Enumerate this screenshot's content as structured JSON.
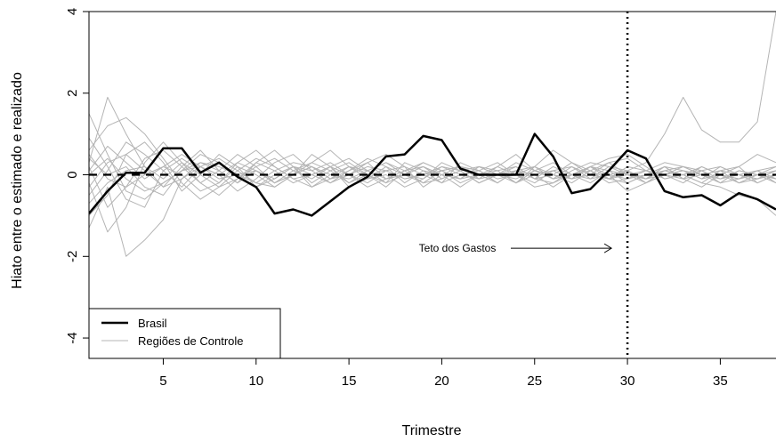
{
  "chart_data": {
    "type": "line",
    "title": "",
    "xlabel": "Trimestre",
    "ylabel": "Hiato entre o estimado e realizado",
    "xlim": [
      1,
      38
    ],
    "ylim": [
      -4.5,
      4
    ],
    "xticks": [
      5,
      10,
      15,
      20,
      25,
      30,
      35
    ],
    "yticks": [
      -4,
      -2,
      0,
      2,
      4
    ],
    "x": [
      1,
      2,
      3,
      4,
      5,
      6,
      7,
      8,
      9,
      10,
      11,
      12,
      13,
      14,
      15,
      16,
      17,
      18,
      19,
      20,
      21,
      22,
      23,
      24,
      25,
      26,
      27,
      28,
      29,
      30,
      31,
      32,
      33,
      34,
      35,
      36,
      37,
      38
    ],
    "reference_line": {
      "y": 0,
      "style": "dashed"
    },
    "intervention": {
      "x": 30,
      "style": "dotted",
      "annotation": "Teto dos Gastos"
    },
    "legend": {
      "position": "bottom-left",
      "entries": [
        {
          "label": "Brasil",
          "color": "#000000",
          "width": 2.5
        },
        {
          "label": "Regiões de Controle",
          "color": "#b4b4b4",
          "width": 1
        }
      ]
    },
    "series": [
      {
        "name": "Brasil",
        "color": "#000000",
        "values": [
          -0.95,
          -0.4,
          0.05,
          0.05,
          0.65,
          0.65,
          0.05,
          0.3,
          -0.05,
          -0.3,
          -0.95,
          -0.85,
          -1.0,
          -0.65,
          -0.3,
          -0.05,
          0.45,
          0.5,
          0.95,
          0.85,
          0.15,
          0.0,
          0.0,
          0.0,
          1.0,
          0.45,
          -0.45,
          -0.35,
          0.1,
          0.6,
          0.4,
          -0.4,
          -0.55,
          -0.5,
          -0.75,
          -0.45,
          -0.6,
          -0.85
        ]
      },
      {
        "color": "#b4b4b4",
        "values": [
          1.5,
          0.5,
          -0.4,
          -0.6,
          -0.2,
          0.1,
          0.3,
          0.2,
          0.0,
          -0.2,
          0.1,
          0.3,
          0.2,
          -0.1,
          0.0,
          0.2,
          0.1,
          -0.1,
          0.0,
          0.2,
          0.1,
          -0.2,
          0.0,
          0.3,
          0.1,
          -0.1,
          0.2,
          0.0,
          -0.1,
          0.2,
          0.1,
          0.3,
          0.2,
          0.0,
          0.1,
          0.2,
          0.5,
          0.3
        ]
      },
      {
        "color": "#b4b4b4",
        "values": [
          0.3,
          1.9,
          1.0,
          0.2,
          -0.3,
          0.2,
          0.6,
          0.1,
          -0.2,
          0.3,
          0.1,
          -0.2,
          0.0,
          0.2,
          0.4,
          0.1,
          -0.2,
          0.0,
          0.3,
          0.1,
          -0.1,
          0.2,
          0.0,
          -0.2,
          0.1,
          0.3,
          0.0,
          -0.1,
          0.2,
          0.1,
          -0.2,
          0.1,
          0.0,
          -0.2,
          0.1,
          0.0,
          -0.1,
          0.1
        ]
      },
      {
        "color": "#b4b4b4",
        "values": [
          -1.3,
          -0.3,
          -2.0,
          -1.6,
          -1.1,
          -0.1,
          0.3,
          0.1,
          -0.2,
          0.1,
          -0.1,
          0.2,
          0.0,
          -0.2,
          0.1,
          0.3,
          -0.1,
          0.0,
          0.2,
          -0.1,
          0.1,
          -0.2,
          0.0,
          0.1,
          0.2,
          -0.1,
          0.0,
          0.2,
          -0.1,
          0.0,
          0.1,
          0.0,
          -0.1,
          0.2,
          0.0,
          -0.1,
          0.1,
          -0.2
        ]
      },
      {
        "color": "#b4b4b4",
        "values": [
          0.6,
          1.2,
          1.4,
          1.0,
          0.4,
          -0.2,
          -0.6,
          -0.3,
          0.1,
          0.4,
          0.2,
          -0.1,
          0.0,
          0.2,
          -0.2,
          0.1,
          0.3,
          0.0,
          -0.2,
          0.1,
          0.2,
          -0.1,
          0.0,
          0.1,
          -0.1,
          0.2,
          0.0,
          -0.2,
          0.1,
          0.0,
          -0.1,
          0.2,
          0.1,
          0.0,
          -0.2,
          0.1,
          0.0,
          0.2
        ]
      },
      {
        "color": "#b4b4b4",
        "values": [
          -1.0,
          -0.5,
          0.5,
          0.8,
          0.3,
          -0.4,
          0.0,
          0.5,
          0.2,
          -0.3,
          0.0,
          0.2,
          -0.2,
          0.1,
          0.3,
          0.0,
          -0.3,
          0.1,
          0.2,
          0.0,
          -0.1,
          0.2,
          0.1,
          -0.2,
          0.0,
          0.1,
          -0.1,
          0.2,
          0.0,
          -0.1,
          0.1,
          0.0,
          -0.2,
          0.1,
          0.2,
          0.0,
          -0.1,
          0.0
        ]
      },
      {
        "color": "#b4b4b4",
        "values": [
          0.2,
          -0.8,
          -0.3,
          0.4,
          0.6,
          0.2,
          -0.2,
          -0.5,
          -0.1,
          0.3,
          0.6,
          0.2,
          -0.3,
          -0.1,
          0.2,
          0.0,
          -0.2,
          0.3,
          0.1,
          -0.2,
          0.0,
          0.1,
          0.3,
          0.0,
          -0.2,
          0.1,
          0.2,
          -0.1,
          0.0,
          0.1,
          -0.1,
          0.0,
          0.2,
          0.1,
          -0.1,
          0.0,
          0.1,
          -0.1
        ]
      },
      {
        "color": "#b4b4b4",
        "values": [
          -0.5,
          0.1,
          0.8,
          0.5,
          0.1,
          -0.3,
          0.2,
          0.0,
          -0.4,
          -0.1,
          0.3,
          0.5,
          0.1,
          -0.2,
          0.0,
          0.3,
          0.5,
          0.2,
          -0.3,
          0.0,
          0.2,
          0.1,
          -0.2,
          0.1,
          0.0,
          -0.3,
          0.0,
          0.2,
          0.4,
          0.5,
          0.2,
          -0.1,
          0.0,
          0.1,
          -0.2,
          -0.1,
          0.0,
          0.1
        ]
      },
      {
        "color": "#b4b4b4",
        "values": [
          0.9,
          0.2,
          -0.6,
          -0.8,
          0.1,
          0.4,
          0.1,
          -0.2,
          0.2,
          0.0,
          -0.3,
          0.0,
          0.3,
          0.6,
          0.2,
          -0.1,
          0.0,
          -0.3,
          -0.1,
          0.2,
          0.0,
          -0.1,
          0.2,
          0.5,
          0.1,
          -0.1,
          0.0,
          0.2,
          0.0,
          -0.4,
          -0.2,
          0.0,
          0.1,
          -0.1,
          0.0,
          0.2,
          -0.2,
          0.0
        ]
      },
      {
        "color": "#b4b4b4",
        "values": [
          -0.2,
          -1.4,
          -0.8,
          0.3,
          0.8,
          0.3,
          -0.2,
          0.1,
          0.5,
          0.2,
          -0.2,
          0.0,
          0.2,
          -0.1,
          0.1,
          0.4,
          0.2,
          -0.2,
          0.1,
          0.0,
          -0.3,
          0.0,
          0.1,
          -0.2,
          0.2,
          0.6,
          0.3,
          0.0,
          -0.1,
          -0.2,
          0.0,
          0.2,
          -0.1,
          -0.3,
          0.0,
          -0.2,
          -0.1,
          0.1
        ]
      },
      {
        "color": "#b4b4b4",
        "values": [
          0.4,
          0.0,
          0.2,
          -0.3,
          -0.5,
          0.1,
          0.5,
          0.3,
          0.0,
          -0.3,
          -0.1,
          0.2,
          0.1,
          0.3,
          0.0,
          -0.2,
          0.1,
          0.2,
          0.0,
          -0.2,
          0.3,
          0.1,
          -0.1,
          0.0,
          0.2,
          0.0,
          -0.2,
          0.1,
          0.3,
          0.0,
          -0.1,
          0.1,
          0.0,
          0.2,
          0.0,
          -0.1,
          0.1,
          0.2
        ]
      },
      {
        "color": "#b4b4b4",
        "values": [
          0.1,
          0.7,
          0.3,
          -0.1,
          0.2,
          0.0,
          -0.4,
          -0.2,
          0.3,
          0.1,
          -0.2,
          0.0,
          0.5,
          0.2,
          -0.3,
          -0.1,
          0.2,
          0.0,
          -0.1,
          0.3,
          0.1,
          -0.2,
          0.0,
          0.2,
          -0.1,
          0.0,
          0.3,
          0.1,
          -0.2,
          -0.1,
          0.0,
          0.2,
          -0.1,
          0.0,
          0.1,
          -0.2,
          0.0,
          -0.1
        ]
      },
      {
        "color": "#b4b4b4",
        "values": [
          -0.7,
          -0.2,
          0.1,
          0.2,
          -0.1,
          0.3,
          0.0,
          -0.3,
          -0.1,
          0.2,
          0.4,
          0.1,
          -0.1,
          0.2,
          0.0,
          -0.3,
          -0.1,
          0.1,
          0.3,
          0.1,
          -0.2,
          0.0,
          0.2,
          0.0,
          -0.3,
          -0.2,
          0.1,
          0.3,
          0.2,
          0.0,
          -0.2,
          0.0,
          0.1,
          -0.1,
          0.2,
          0.0,
          -0.2,
          0.0
        ]
      },
      {
        "color": "#b4b4b4",
        "values": [
          0.0,
          0.4,
          -0.1,
          -0.4,
          -0.2,
          0.1,
          0.2,
          0.4,
          0.1,
          -0.2,
          -0.3,
          0.0,
          0.2,
          0.0,
          -0.1,
          0.1,
          0.3,
          0.1,
          -0.2,
          -0.1,
          0.1,
          0.2,
          0.0,
          -0.1,
          0.1,
          0.0,
          -0.1,
          0.2,
          0.1,
          -0.2,
          0.0,
          0.1,
          0.2,
          0.0,
          -0.1,
          0.1,
          0.0,
          -0.2
        ]
      },
      {
        "color": "#b4b4b4",
        "values": [
          -0.3,
          0.3,
          0.5,
          0.1,
          -0.3,
          -0.1,
          0.2,
          0.0,
          0.3,
          0.6,
          0.2,
          -0.1,
          -0.3,
          0.0,
          0.2,
          0.1,
          -0.1,
          0.0,
          0.2,
          0.0,
          -0.1,
          0.0,
          0.1,
          0.2,
          -0.1,
          -0.2,
          0.0,
          0.1,
          -0.1,
          0.1,
          0.3,
          1.0,
          1.9,
          1.1,
          0.8,
          0.8,
          1.3,
          4.0
        ]
      },
      {
        "color": "#b4b4b4",
        "values": [
          0.5,
          -0.1,
          -0.3,
          0.0,
          0.2,
          0.5,
          0.2,
          -0.1,
          0.0,
          0.1,
          -0.2,
          0.1,
          0.3,
          0.1,
          -0.2,
          0.0,
          0.1,
          -0.1,
          0.0,
          0.1,
          0.2,
          0.0,
          -0.2,
          0.1,
          0.0,
          0.1,
          -0.1,
          0.0,
          0.3,
          0.4,
          0.1,
          -0.1,
          0.0,
          -0.2,
          -0.3,
          -0.5,
          -0.6,
          -1.0
        ]
      }
    ]
  }
}
